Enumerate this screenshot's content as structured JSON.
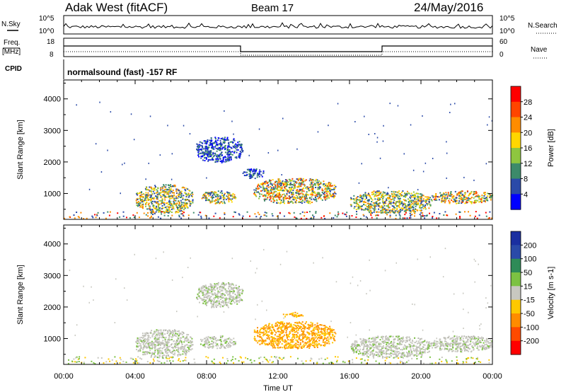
{
  "header": {
    "station": "Adak West (fitACF)",
    "beam": "Beam 17",
    "date": "24/May/2016"
  },
  "left_labels": {
    "nsky": "N.Sky",
    "freq": "Freq.",
    "mhz": "[MHz]",
    "cpid": "CPID"
  },
  "right_labels": {
    "nsearch": "N.Search",
    "nave": "Nave"
  },
  "small_ticks": {
    "noise_top": "10^5",
    "noise_bottom": "10^0",
    "freq_top": "18",
    "freq_bottom": "8",
    "nave_top": "60",
    "nave_bottom": "0"
  },
  "cpid_text": "normalsound (fast) -157 RF",
  "x_axis": {
    "label": "Time UT",
    "ticks": [
      "00:00",
      "04:00",
      "08:00",
      "12:00",
      "16:00",
      "20:00",
      "00:00"
    ]
  },
  "chart_data": [
    {
      "type": "heatmap",
      "quantity": "Power",
      "ylabel": "Slant Range [km]",
      "yticks": [
        "1000",
        "2000",
        "3000",
        "4000"
      ],
      "ylim": [
        180,
        4600
      ],
      "xlim_hours": [
        0,
        24
      ],
      "colorbar_label": "Power [dB]",
      "colorbar_ticks": [
        "4",
        "8",
        "12",
        "16",
        "20",
        "24",
        "28"
      ],
      "colorbar_colors": [
        "#0000ff",
        "#2a4aa8",
        "#3c8a6a",
        "#8ec63f",
        "#ffd700",
        "#ff8c00",
        "#ff4500",
        "#ff0000"
      ],
      "echo_regions": [
        {
          "t0": 4.0,
          "t1": 7.2,
          "r0": 400,
          "r1": 1300,
          "level": "mid"
        },
        {
          "t0": 7.6,
          "t1": 9.6,
          "r0": 700,
          "r1": 1100,
          "level": "mid"
        },
        {
          "t0": 7.4,
          "t1": 10.0,
          "r0": 2000,
          "r1": 2800,
          "level": "low"
        },
        {
          "t0": 10.0,
          "t1": 11.2,
          "r0": 1500,
          "r1": 1800,
          "level": "low"
        },
        {
          "t0": 10.6,
          "t1": 15.2,
          "r0": 700,
          "r1": 1500,
          "level": "high"
        },
        {
          "t0": 16.0,
          "t1": 20.6,
          "r0": 400,
          "r1": 1100,
          "level": "mid"
        },
        {
          "t0": 20.6,
          "t1": 24.0,
          "r0": 700,
          "r1": 1100,
          "level": "high"
        }
      ]
    },
    {
      "type": "heatmap",
      "quantity": "Velocity",
      "ylabel": "Slant Range [km]",
      "yticks": [
        "1000",
        "2000",
        "3000",
        "4000"
      ],
      "ylim": [
        180,
        4600
      ],
      "xlim_hours": [
        0,
        24
      ],
      "colorbar_label": "Velocity [m s-1]",
      "colorbar_ticks": [
        "200",
        "100",
        "50",
        "15",
        "-15",
        "-50",
        "-100",
        "-200"
      ],
      "colorbar_colors": [
        "#1a2fa0",
        "#2a4aa8",
        "#2e8b57",
        "#7cc242",
        "#c8c8c0",
        "#ffc800",
        "#ff8c00",
        "#ff4a00",
        "#ff0000"
      ],
      "echo_regions": [
        {
          "t0": 4.0,
          "t1": 7.2,
          "r0": 400,
          "r1": 1300,
          "level": "gray"
        },
        {
          "t0": 7.6,
          "t1": 9.6,
          "r0": 700,
          "r1": 1100,
          "level": "gray"
        },
        {
          "t0": 7.4,
          "t1": 10.0,
          "r0": 2000,
          "r1": 2800,
          "level": "gray"
        },
        {
          "t0": 12.2,
          "t1": 13.4,
          "r0": 1700,
          "r1": 1850,
          "level": "orange"
        },
        {
          "t0": 10.6,
          "t1": 15.2,
          "r0": 700,
          "r1": 1550,
          "level": "orange"
        },
        {
          "t0": 16.0,
          "t1": 20.6,
          "r0": 400,
          "r1": 1100,
          "level": "gray"
        },
        {
          "t0": 20.6,
          "t1": 24.0,
          "r0": 600,
          "r1": 1100,
          "level": "gray"
        }
      ]
    }
  ]
}
